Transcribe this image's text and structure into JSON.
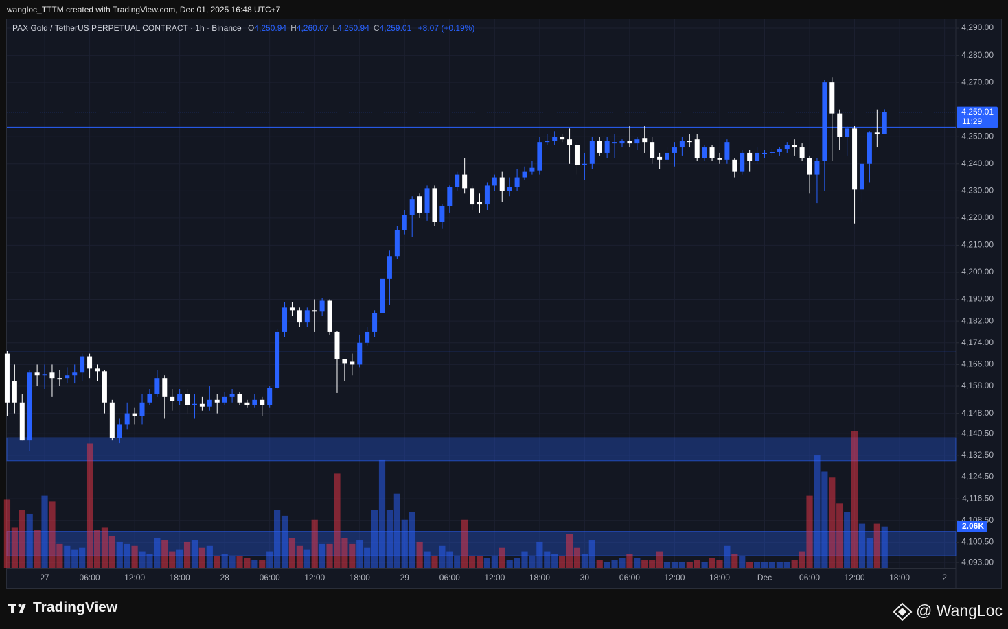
{
  "header": "wangloc_TTTM created with TradingView.com, Dec 01, 2025 16:48 UTC+7",
  "footer": {
    "brand": "TradingView",
    "author": "@ WangLoc"
  },
  "chart_data": {
    "type": "candlestick",
    "title": "PAX Gold / TetherUS PERPETUAL CONTRACT · 1h · Binance",
    "ohlc_legend": [
      {
        "label": "O",
        "value": "4,250.94"
      },
      {
        "label": "H",
        "value": "4,260.07"
      },
      {
        "label": "L",
        "value": "4,250.94"
      },
      {
        "label": "C",
        "value": "4,259.01"
      }
    ],
    "change": "+8.07 (+0.19%)",
    "last_price_label": "4,259.01",
    "countdown": "11:29",
    "up_color": "#2962ff",
    "down_color": "#ffffff",
    "open": [
      4170,
      4160,
      4152,
      4138,
      4163,
      4162,
      4163,
      4161,
      4161,
      4162,
      4163,
      4169,
      4164.5,
      4163.5,
      4152,
      4139,
      4144,
      4148,
      4147,
      4152,
      4155,
      4161,
      4154,
      4152.5,
      4155,
      4151,
      4151.5,
      4150.5,
      4153,
      4152,
      4154,
      4155,
      4152,
      4151,
      4153,
      4151,
      4157.5,
      4178,
      4187,
      4186,
      4181.5,
      4186,
      4185.5,
      4189.5,
      4178,
      4168,
      4167,
      4166,
      4174,
      4178,
      4185,
      4197.5,
      4206,
      4215.5,
      4221,
      4228,
      4222,
      4231,
      4218.5,
      4224.5,
      4231.5,
      4236,
      4231,
      4226,
      4225,
      4232,
      4235,
      4230,
      4231.5,
      4235,
      4237,
      4237.5,
      4248,
      4248.5,
      4250,
      4249,
      4247,
      4239.5,
      4240,
      4248.5,
      4244,
      4247.5,
      4247.5,
      4248.5,
      4247.5,
      4249.5,
      4248,
      4242.5,
      4241.5,
      4244,
      4246,
      4248.5,
      4249,
      4242,
      4246,
      4242,
      4241.5,
      4241.5,
      4237,
      4244,
      4241,
      4243.5,
      4244,
      4244.5,
      4245.5,
      4247,
      4246,
      4242,
      4236,
      4241,
      4270,
      4258.5,
      4250,
      4253,
      4230.5,
      4240,
      4251.5,
      4250.94
    ],
    "high": [
      4171,
      4166,
      4155,
      4164,
      4166,
      4166,
      4166,
      4164,
      4165,
      4166,
      4170,
      4170,
      4166,
      4164,
      4153,
      4146,
      4152,
      4150,
      4155,
      4157,
      4164,
      4162,
      4157,
      4157,
      4157,
      4155,
      4154,
      4158,
      4155,
      4156,
      4157,
      4156,
      4153,
      4155,
      4154,
      4158,
      4179,
      4189,
      4189,
      4187,
      4187,
      4190,
      4190.5,
      4190,
      4178.5,
      4168,
      4170,
      4177,
      4180,
      4186,
      4200,
      4208,
      4217,
      4223,
      4228,
      4229,
      4232,
      4232,
      4225,
      4232,
      4237,
      4242,
      4232,
      4229,
      4233,
      4236,
      4237,
      4235,
      4238,
      4239,
      4241,
      4250,
      4251,
      4252,
      4251,
      4253,
      4248,
      4244,
      4250,
      4250,
      4250,
      4251,
      4249,
      4254,
      4250,
      4254,
      4250,
      4244,
      4246,
      4248,
      4250,
      4251,
      4251,
      4247,
      4247,
      4244,
      4249,
      4242,
      4245,
      4245,
      4246,
      4245,
      4245.5,
      4246,
      4248,
      4249,
      4247.5,
      4243,
      4242,
      4271,
      4272,
      4260,
      4254,
      4254,
      4243,
      4252,
      4260,
      4260.07
    ],
    "low": [
      4147,
      4148,
      4138,
      4134,
      4158,
      4157,
      4154,
      4158,
      4159,
      4159,
      4160,
      4161,
      4160,
      4148,
      4138,
      4137,
      4142,
      4144,
      4144,
      4151,
      4154,
      4146,
      4149,
      4151,
      4148,
      4146,
      4149,
      4149,
      4148,
      4151,
      4152,
      4151,
      4150,
      4150,
      4147,
      4150,
      4157,
      4176,
      4184,
      4180,
      4180,
      4178,
      4184,
      4177,
      4155.5,
      4160,
      4162,
      4165,
      4173,
      4176,
      4184,
      4188,
      4205,
      4214,
      4213,
      4220,
      4219,
      4217,
      4216,
      4222,
      4230,
      4229,
      4223,
      4222,
      4223,
      4230,
      4226,
      4228,
      4230,
      4234,
      4236,
      4236,
      4247,
      4247,
      4248,
      4240,
      4236,
      4234,
      4238,
      4243,
      4242,
      4242,
      4246,
      4246,
      4245,
      4244,
      4240,
      4238,
      4240,
      4239,
      4243,
      4246,
      4241,
      4241,
      4241,
      4240,
      4240,
      4235,
      4236,
      4237,
      4240,
      4242,
      4243,
      4243,
      4244,
      4243,
      4241,
      4229,
      4225.5,
      4230,
      4241,
      4245,
      4243,
      4218,
      4226,
      4233,
      4246,
      4250.94
    ],
    "close": [
      4152,
      4152,
      4138,
      4163,
      4162,
      4162.5,
      4161,
      4160.5,
      4162,
      4163,
      4169,
      4164.5,
      4163.5,
      4152,
      4139,
      4144,
      4148,
      4147,
      4152,
      4155,
      4161,
      4154,
      4152.5,
      4155,
      4151,
      4151.5,
      4150.5,
      4153,
      4152,
      4154,
      4155,
      4152,
      4151,
      4153,
      4151,
      4157.5,
      4178,
      4187,
      4186,
      4181.5,
      4186,
      4185.5,
      4189.5,
      4178,
      4168,
      4166.5,
      4166,
      4174,
      4178,
      4185,
      4197.5,
      4206,
      4215.5,
      4221,
      4227,
      4222,
      4231,
      4218.5,
      4224.5,
      4231.5,
      4236,
      4231,
      4225,
      4225,
      4232,
      4235,
      4230,
      4231.5,
      4235,
      4237,
      4238.5,
      4248,
      4248.5,
      4250,
      4249,
      4247,
      4239.5,
      4240,
      4248.5,
      4244,
      4248.5,
      4248,
      4248.5,
      4247.5,
      4249,
      4248,
      4242,
      4241.5,
      4244,
      4246,
      4248.5,
      4248,
      4242,
      4246,
      4242,
      4241.5,
      4248,
      4237,
      4244,
      4241,
      4244,
      4244,
      4244.5,
      4245.5,
      4247,
      4246,
      4242,
      4236,
      4241,
      4270,
      4258.5,
      4250,
      4253,
      4230.5,
      4240,
      4251.5,
      4250.94,
      4259.01
    ],
    "volume": {
      "up_color": "#2962ff",
      "down_color": "#f23645",
      "ylim": [
        0,
        6900
      ],
      "values": [
        3400,
        2000,
        2900,
        2700,
        1900,
        3600,
        3300,
        1200,
        1100,
        900,
        1000,
        6200,
        1900,
        2000,
        1600,
        1300,
        1200,
        1100,
        800,
        700,
        1500,
        1400,
        800,
        900,
        1300,
        1400,
        1000,
        1100,
        600,
        700,
        600,
        600,
        500,
        400,
        400,
        800,
        2900,
        2600,
        1500,
        1100,
        900,
        2400,
        1200,
        1200,
        4700,
        1500,
        1200,
        1400,
        1000,
        2900,
        5400,
        2900,
        3700,
        2400,
        2800,
        1300,
        800,
        600,
        1100,
        800,
        600,
        2400,
        600,
        600,
        500,
        600,
        1000,
        400,
        500,
        800,
        600,
        1300,
        800,
        700,
        600,
        1700,
        1000,
        700,
        1400,
        400,
        300,
        400,
        500,
        700,
        500,
        400,
        400,
        800,
        300,
        300,
        300,
        300,
        400,
        300,
        500,
        400,
        1100,
        700,
        600,
        300,
        300,
        300,
        300,
        300,
        300,
        400,
        800,
        3600,
        5600,
        4800,
        4500,
        3200,
        2800,
        6800,
        2200,
        1500,
        2200,
        2060
      ],
      "value_labels": [
        null,
        null,
        null,
        null,
        null,
        null,
        null,
        null,
        null,
        null,
        null,
        null,
        null,
        null,
        null,
        null,
        null,
        null,
        null,
        null,
        null,
        null,
        null,
        null,
        null,
        null,
        null,
        null,
        null,
        null,
        null,
        null,
        null,
        null,
        null,
        null,
        null,
        null,
        null,
        null,
        null,
        null,
        null,
        null,
        null,
        null,
        null,
        null,
        null,
        null,
        null,
        null,
        null,
        null,
        null,
        null,
        null,
        null,
        null,
        null,
        null,
        null,
        null,
        null,
        null,
        null,
        null,
        null,
        null,
        null,
        null,
        null,
        null,
        null,
        null,
        null,
        null,
        null,
        null,
        null,
        null,
        null,
        null,
        null,
        null,
        null,
        null,
        null,
        null,
        null,
        null,
        null,
        null,
        null,
        null,
        null,
        null,
        null,
        null,
        null,
        null,
        null,
        null,
        null,
        null,
        null,
        null,
        null,
        null,
        null,
        null,
        null,
        null,
        null,
        null,
        null,
        null,
        "2.06K"
      ]
    },
    "levels": [
      4253.5,
      4171
    ],
    "zones": [
      [
        4130.5,
        4139
      ],
      [
        4095.5,
        4104.5
      ]
    ],
    "level_color": "#2962ff",
    "grid": true,
    "xlim": [
      -0.04,
      126.5
    ],
    "xticks": [
      {
        "value": 5,
        "label": "27"
      },
      {
        "value": 11,
        "label": "06:00"
      },
      {
        "value": 17,
        "label": "12:00"
      },
      {
        "value": 23,
        "label": "18:00"
      },
      {
        "value": 29,
        "label": "28"
      },
      {
        "value": 35,
        "label": "06:00"
      },
      {
        "value": 41,
        "label": "12:00"
      },
      {
        "value": 47,
        "label": "18:00"
      },
      {
        "value": 53,
        "label": "29"
      },
      {
        "value": 59,
        "label": "06:00"
      },
      {
        "value": 65,
        "label": "12:00"
      },
      {
        "value": 71,
        "label": "18:00"
      },
      {
        "value": 77,
        "label": "30"
      },
      {
        "value": 83,
        "label": "06:00"
      },
      {
        "value": 89,
        "label": "12:00"
      },
      {
        "value": 95,
        "label": "18:00"
      },
      {
        "value": 101,
        "label": "Dec"
      },
      {
        "value": 107,
        "label": "06:00"
      },
      {
        "value": 113,
        "label": "12:00"
      },
      {
        "value": 119,
        "label": "18:00"
      },
      {
        "value": 125,
        "label": "2"
      }
    ],
    "ylim": [
      4091,
      4293.3
    ],
    "yticks": [
      {
        "value": 4290,
        "label": "4,290.00"
      },
      {
        "value": 4280,
        "label": "4,280.00"
      },
      {
        "value": 4270,
        "label": "4,270.00"
      },
      {
        "value": 4250,
        "label": "4,250.00"
      },
      {
        "value": 4240,
        "label": "4,240.00"
      },
      {
        "value": 4230,
        "label": "4,230.00"
      },
      {
        "value": 4220,
        "label": "4,220.00"
      },
      {
        "value": 4210,
        "label": "4,210.00"
      },
      {
        "value": 4200,
        "label": "4,200.00"
      },
      {
        "value": 4190,
        "label": "4,190.00"
      },
      {
        "value": 4182,
        "label": "4,182.00"
      },
      {
        "value": 4174,
        "label": "4,174.00"
      },
      {
        "value": 4166,
        "label": "4,166.00"
      },
      {
        "value": 4158,
        "label": "4,158.00"
      },
      {
        "value": 4148,
        "label": "4,148.00"
      },
      {
        "value": 4140.5,
        "label": "4,140.50"
      },
      {
        "value": 4132.5,
        "label": "4,132.50"
      },
      {
        "value": 4124.5,
        "label": "4,124.50"
      },
      {
        "value": 4116.5,
        "label": "4,116.50"
      },
      {
        "value": 4108.5,
        "label": "4,108.50"
      },
      {
        "value": 4100.5,
        "label": "4,100.50"
      },
      {
        "value": 4093,
        "label": "4,093.00"
      }
    ]
  }
}
